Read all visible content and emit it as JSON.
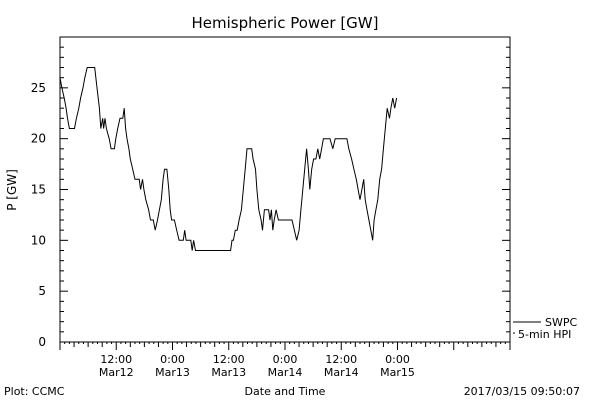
{
  "chart_data": {
    "type": "line",
    "title": "Hemispheric Power [GW]",
    "ylabel": "P [GW]",
    "xlabel": "Date and Time",
    "ylim": [
      0,
      30
    ],
    "yticks": [
      0,
      5,
      10,
      15,
      20,
      25
    ],
    "xlim_hours": [
      0,
      96
    ],
    "xticks": [
      {
        "time": "12:00",
        "date": "Mar12"
      },
      {
        "time": "0:00",
        "date": "Mar13"
      },
      {
        "time": "12:00",
        "date": "Mar13"
      },
      {
        "time": "0:00",
        "date": "Mar14"
      },
      {
        "time": "12:00",
        "date": "Mar14"
      },
      {
        "time": "0:00",
        "date": "Mar15"
      }
    ],
    "xtick_hours": [
      12,
      24,
      36,
      48,
      60,
      72
    ],
    "legend": {
      "placement": "bottom-right",
      "entries": [
        "SWPC",
        "5-min HPI"
      ]
    },
    "series": [
      {
        "name": "5-min HPI",
        "line_color": "#000000",
        "points": [
          [
            0.0,
            26
          ],
          [
            0.4,
            25
          ],
          [
            0.9,
            24
          ],
          [
            1.3,
            23
          ],
          [
            1.6,
            22
          ],
          [
            2.0,
            21
          ],
          [
            3.1,
            21
          ],
          [
            3.5,
            22
          ],
          [
            4.0,
            23
          ],
          [
            4.4,
            24
          ],
          [
            4.9,
            25
          ],
          [
            5.3,
            26
          ],
          [
            5.8,
            27
          ],
          [
            7.4,
            27
          ],
          [
            7.9,
            25
          ],
          [
            8.4,
            23
          ],
          [
            8.7,
            21
          ],
          [
            9.1,
            22
          ],
          [
            9.3,
            21
          ],
          [
            9.6,
            22
          ],
          [
            9.9,
            21
          ],
          [
            10.5,
            20
          ],
          [
            10.9,
            19
          ],
          [
            11.6,
            19
          ],
          [
            11.9,
            20
          ],
          [
            12.3,
            21
          ],
          [
            12.8,
            22
          ],
          [
            13.4,
            22
          ],
          [
            13.7,
            23
          ],
          [
            14.0,
            21
          ],
          [
            14.3,
            20
          ],
          [
            14.7,
            19
          ],
          [
            15.0,
            18
          ],
          [
            15.5,
            17
          ],
          [
            16.0,
            16
          ],
          [
            16.9,
            16
          ],
          [
            17.2,
            15
          ],
          [
            17.6,
            16
          ],
          [
            17.9,
            15
          ],
          [
            18.3,
            14
          ],
          [
            18.9,
            13
          ],
          [
            19.3,
            12
          ],
          [
            19.9,
            12
          ],
          [
            20.3,
            11
          ],
          [
            20.8,
            12
          ],
          [
            21.2,
            13
          ],
          [
            21.6,
            14
          ],
          [
            22.0,
            16
          ],
          [
            22.3,
            17
          ],
          [
            22.8,
            17
          ],
          [
            23.2,
            15
          ],
          [
            23.5,
            13
          ],
          [
            23.8,
            12
          ],
          [
            24.4,
            12
          ],
          [
            24.9,
            11
          ],
          [
            25.4,
            10
          ],
          [
            26.3,
            10
          ],
          [
            26.6,
            11
          ],
          [
            26.9,
            10
          ],
          [
            27.9,
            10
          ],
          [
            28.2,
            9
          ],
          [
            28.5,
            10
          ],
          [
            28.9,
            9
          ],
          [
            36.4,
            9
          ],
          [
            36.7,
            10
          ],
          [
            37.0,
            10
          ],
          [
            37.4,
            11
          ],
          [
            37.8,
            11
          ],
          [
            38.2,
            12
          ],
          [
            38.7,
            13
          ],
          [
            39.1,
            15
          ],
          [
            39.5,
            17
          ],
          [
            39.9,
            19
          ],
          [
            40.9,
            19
          ],
          [
            41.2,
            18
          ],
          [
            41.7,
            17
          ],
          [
            42.0,
            15
          ],
          [
            42.4,
            13
          ],
          [
            42.9,
            12
          ],
          [
            43.2,
            11
          ],
          [
            43.6,
            13
          ],
          [
            44.5,
            13
          ],
          [
            44.8,
            12
          ],
          [
            45.1,
            13
          ],
          [
            45.4,
            11
          ],
          [
            45.7,
            12
          ],
          [
            46.1,
            13
          ],
          [
            46.6,
            12
          ],
          [
            49.5,
            12
          ],
          [
            50.0,
            11
          ],
          [
            50.5,
            10
          ],
          [
            51.0,
            11
          ],
          [
            51.4,
            13
          ],
          [
            51.8,
            15
          ],
          [
            52.2,
            17
          ],
          [
            52.6,
            19
          ],
          [
            53.0,
            17
          ],
          [
            53.3,
            15
          ],
          [
            53.7,
            17
          ],
          [
            54.1,
            18
          ],
          [
            54.6,
            18
          ],
          [
            55.0,
            19
          ],
          [
            55.4,
            18
          ],
          [
            55.8,
            19
          ],
          [
            56.2,
            20
          ],
          [
            57.6,
            20
          ],
          [
            58.2,
            19
          ],
          [
            58.7,
            20
          ],
          [
            61.2,
            20
          ],
          [
            61.6,
            19
          ],
          [
            62.2,
            18
          ],
          [
            62.7,
            17
          ],
          [
            63.2,
            16
          ],
          [
            63.6,
            15
          ],
          [
            64.0,
            14
          ],
          [
            64.4,
            15
          ],
          [
            64.8,
            16
          ],
          [
            65.1,
            14
          ],
          [
            65.5,
            13
          ],
          [
            65.9,
            12
          ],
          [
            66.3,
            11
          ],
          [
            66.7,
            10
          ],
          [
            67.0,
            12
          ],
          [
            67.4,
            13
          ],
          [
            67.8,
            14
          ],
          [
            68.2,
            16
          ],
          [
            68.6,
            17
          ],
          [
            69.0,
            19
          ],
          [
            69.4,
            21
          ],
          [
            69.8,
            23
          ],
          [
            70.3,
            22
          ],
          [
            70.6,
            23
          ],
          [
            71.0,
            24
          ],
          [
            71.4,
            23
          ],
          [
            71.8,
            24
          ]
        ]
      }
    ]
  },
  "footer": {
    "plot_credit": "Plot: CCMC",
    "timestamp": "2017/03/15 09:50:07"
  }
}
